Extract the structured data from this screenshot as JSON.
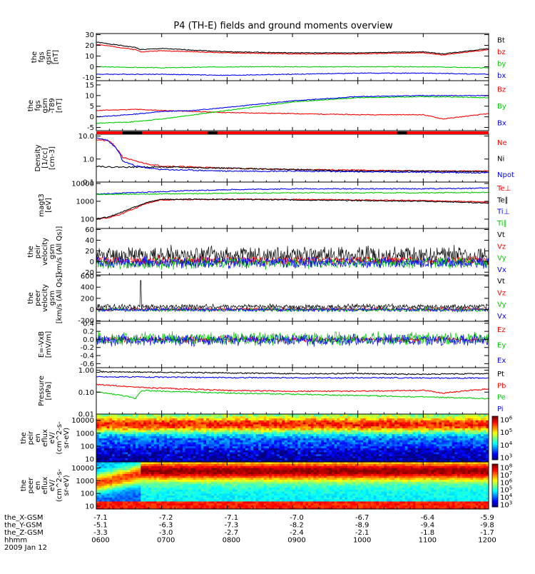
{
  "title": "P4 (TH-E) fields and ground moments overview",
  "chart_data": {
    "type": "line",
    "title": "P4 (TH-E) fields and ground moments overview",
    "time": {
      "range": [
        600,
        1200
      ],
      "ticks": [
        "0600",
        "0700",
        "0800",
        "0900",
        "1000",
        "1100",
        "1200"
      ],
      "date": "2009 Jan 12"
    },
    "panels": [
      {
        "id": "fgs_gsm",
        "ylabel": [
          "the",
          "fgs",
          "gsm",
          "[nT]"
        ],
        "ylim": [
          -13,
          31
        ],
        "scale": "linear",
        "yticks": [
          "30",
          "20",
          "10",
          "0",
          "-10"
        ],
        "series": [
          {
            "name": "Bt",
            "color": "#000000",
            "x": [
              600,
              660,
              668,
              700,
              800,
              900,
              1000,
              1100,
              1130,
              1200
            ],
            "y": [
              23,
              18,
              16,
              17,
              14,
              13,
              13,
              14,
              12,
              17
            ]
          },
          {
            "name": "bz",
            "color": "#ff0000",
            "x": [
              600,
              660,
              668,
              700,
              800,
              900,
              1000,
              1100,
              1130,
              1200
            ],
            "y": [
              21,
              16,
              14,
              15,
              13,
              12,
              12,
              13,
              11,
              16
            ]
          },
          {
            "name": "by",
            "color": "#00cc00",
            "x": [
              600,
              700,
              800,
              900,
              1000,
              1100,
              1200
            ],
            "y": [
              0,
              -1,
              0,
              0,
              0,
              0,
              -1
            ]
          },
          {
            "name": "bx",
            "color": "#0000ff",
            "x": [
              600,
              700,
              800,
              900,
              1000,
              1100,
              1200
            ],
            "y": [
              -7,
              -7,
              -8,
              -7,
              -6,
              -6,
              -7
            ]
          }
        ]
      },
      {
        "id": "fgs_gsm_t89",
        "ylabel": [
          "the",
          "fgs",
          "gsm",
          "-T89",
          "[nT]"
        ],
        "ylim": [
          -6.5,
          17
        ],
        "scale": "linear",
        "yticks": [
          "15",
          "10",
          "5",
          "0",
          "-5"
        ],
        "series": [
          {
            "name": "Bz",
            "color": "#ff0000",
            "x": [
              600,
              660,
              700,
              750,
              800,
              900,
              1000,
              1100,
              1130,
              1200
            ],
            "y": [
              3,
              3.5,
              3,
              2.5,
              2,
              1.5,
              1,
              1,
              -1,
              1.5
            ]
          },
          {
            "name": "By",
            "color": "#00cc00",
            "x": [
              600,
              650,
              700,
              750,
              800,
              850,
              900,
              950,
              1000,
              1100,
              1200
            ],
            "y": [
              -3,
              -2.5,
              -1,
              1,
              3,
              5,
              7,
              8,
              9,
              9.5,
              9
            ]
          },
          {
            "name": "Bx",
            "color": "#0000ff",
            "x": [
              600,
              650,
              700,
              750,
              800,
              850,
              900,
              950,
              1000,
              1100,
              1200
            ],
            "y": [
              0,
              1,
              2.5,
              3,
              4.5,
              6,
              7.5,
              8.5,
              9.5,
              10,
              10
            ]
          }
        ]
      },
      {
        "id": "density",
        "ylabel": [
          "Density",
          "[1/cc]",
          "[cm-3]"
        ],
        "ylim": [
          0.1,
          12
        ],
        "scale": "log",
        "yticks": [
          "10.0",
          "1.0",
          "0.1"
        ],
        "ytick_values": [
          10,
          1,
          0.1
        ],
        "series": [
          {
            "name": "Ne",
            "color": "#ff0000",
            "x": [
              600,
              620,
              630,
              640,
              660,
              680,
              700,
              800,
              900,
              1000,
              1100,
              1200
            ],
            "y": [
              7,
              6,
              3,
              1.2,
              0.8,
              0.6,
              0.5,
              0.4,
              0.35,
              0.33,
              0.3,
              0.3
            ]
          },
          {
            "name": "Ni",
            "color": "#000000",
            "x": [
              600,
              620,
              640,
              660,
              680,
              700,
              800,
              900,
              1000,
              1100,
              1200
            ],
            "y": [
              0.5,
              0.45,
              0.45,
              0.45,
              0.45,
              0.45,
              0.4,
              0.35,
              0.3,
              0.3,
              0.28
            ]
          },
          {
            "name": "Npot",
            "color": "#0000ff",
            "x": [
              600,
              615,
              625,
              640,
              660,
              680,
              700,
              800,
              900,
              1000,
              1100,
              1200
            ],
            "y": [
              8,
              7,
              4,
              0.8,
              0.5,
              0.4,
              0.35,
              0.3,
              0.3,
              0.28,
              0.27,
              0.25
            ]
          }
        ]
      },
      {
        "id": "magt3",
        "ylabel": [
          "magt3",
          "[eV]"
        ],
        "ylim": [
          30,
          12000
        ],
        "scale": "log",
        "yticks": [
          "10000",
          "1000",
          "100"
        ],
        "ytick_values": [
          10000,
          1000,
          100
        ],
        "series": [
          {
            "name": "Te⊥",
            "color": "#ff0000",
            "x": [
              600,
              620,
              640,
              660,
              680,
              700,
              800,
              900,
              1000,
              1100,
              1200
            ],
            "y": [
              100,
              120,
              200,
              400,
              800,
              1200,
              1300,
              1300,
              1200,
              1100,
              900
            ]
          },
          {
            "name": "Te∥",
            "color": "#000000",
            "x": [
              600,
              620,
              640,
              660,
              680,
              700,
              800,
              900,
              1000,
              1100,
              1200
            ],
            "y": [
              110,
              130,
              250,
              500,
              900,
              1300,
              1300,
              1200,
              1100,
              1000,
              800
            ]
          },
          {
            "name": "Ti⊥",
            "color": "#0000ff",
            "x": [
              600,
              650,
              700,
              750,
              800,
              900,
              1000,
              1100,
              1200
            ],
            "y": [
              2500,
              3000,
              3500,
              4000,
              4500,
              5000,
              5000,
              5000,
              5500
            ]
          },
          {
            "name": "Ti∥",
            "color": "#00cc00",
            "x": [
              600,
              650,
              700,
              800,
              900,
              1000,
              1100,
              1200
            ],
            "y": [
              2500,
              2500,
              2600,
              2800,
              3000,
              3000,
              3000,
              3200
            ]
          }
        ]
      },
      {
        "id": "peir_velocity",
        "ylabel": [
          "the",
          "peir",
          "velocity",
          "gsm",
          "[km/s (All Qs)]"
        ],
        "ylim": [
          -25,
          62
        ],
        "scale": "linear",
        "yticks": [
          "60",
          "40",
          "20",
          "0",
          "-20"
        ],
        "series": [
          {
            "name": "Vt",
            "color": "#000000",
            "base": 12,
            "noise": 14,
            "seed": 11
          },
          {
            "name": "Vz",
            "color": "#ff0000",
            "base": 2,
            "noise": 7,
            "seed": 12
          },
          {
            "name": "Vy",
            "color": "#00cc00",
            "base": -3,
            "noise": 9,
            "seed": 13
          },
          {
            "name": "Vx",
            "color": "#0000ff",
            "base": -2,
            "noise": 9,
            "seed": 14
          }
        ]
      },
      {
        "id": "peer_velocity",
        "ylabel": [
          "the",
          "peer",
          "velocity",
          "gsm",
          "[km/s (All Qs)]"
        ],
        "ylim": [
          -210,
          620
        ],
        "scale": "linear",
        "yticks": [
          "600",
          "400",
          "200",
          "0",
          "-200"
        ],
        "series": [
          {
            "name": "Vt",
            "color": "#000000",
            "base": 50,
            "noise": 40,
            "seed": 21
          },
          {
            "name": "Vz",
            "color": "#ff0000",
            "base": 5,
            "noise": 25,
            "seed": 22
          },
          {
            "name": "Vy",
            "color": "#00cc00",
            "base": -5,
            "noise": 30,
            "seed": 23
          },
          {
            "name": "Vx",
            "color": "#0000ff",
            "base": -5,
            "noise": 30,
            "seed": 24
          }
        ]
      },
      {
        "id": "efield",
        "ylabel": [
          "E=-VxB",
          "[mV/m]"
        ],
        "ylim": [
          -0.7,
          0.45
        ],
        "scale": "linear",
        "yticks": [
          "0.4",
          "0.2",
          "0.0",
          "-0.2",
          "-0.4",
          "-0.6"
        ],
        "series": [
          {
            "name": "Ez",
            "color": "#ff0000",
            "base": 0.0,
            "noise": 0.06,
            "seed": 31
          },
          {
            "name": "Ey",
            "color": "#00cc00",
            "base": 0.02,
            "noise": 0.14,
            "seed": 32
          },
          {
            "name": "Ex",
            "color": "#0000ff",
            "base": -0.02,
            "noise": 0.12,
            "seed": 33
          }
        ]
      },
      {
        "id": "pressure",
        "ylabel": [
          "Pressure",
          "[nPa]"
        ],
        "ylim": [
          0.01,
          1.3
        ],
        "scale": "log",
        "yticks": [
          "1.00",
          "0.10",
          "0.01"
        ],
        "ytick_values": [
          1,
          0.1,
          0.01
        ],
        "series": [
          {
            "name": "Pt",
            "color": "#000000",
            "x": [
              600,
              700,
              800,
              900,
              1000,
              1100,
              1200
            ],
            "y": [
              0.85,
              0.8,
              0.75,
              0.7,
              0.7,
              0.65,
              0.7
            ]
          },
          {
            "name": "Pb",
            "color": "#ff0000",
            "x": [
              600,
              660,
              700,
              800,
              900,
              1000,
              1100,
              1130,
              1200
            ],
            "y": [
              0.22,
              0.17,
              0.15,
              0.12,
              0.11,
              0.11,
              0.12,
              0.09,
              0.14
            ]
          },
          {
            "name": "Pe",
            "color": "#00cc00",
            "x": [
              600,
              640,
              660,
              670,
              700,
              800,
              900,
              1000,
              1100,
              1200
            ],
            "y": [
              0.1,
              0.07,
              0.05,
              0.12,
              0.11,
              0.09,
              0.08,
              0.07,
              0.06,
              0.05
            ]
          },
          {
            "name": "Pi",
            "color": "#0000ff",
            "x": [
              600,
              700,
              800,
              900,
              1000,
              1100,
              1200
            ],
            "y": [
              0.5,
              0.48,
              0.46,
              0.45,
              0.45,
              0.44,
              0.44
            ]
          }
        ]
      }
    ],
    "spectrograms": [
      {
        "id": "peir_en_eflux",
        "type": "heatmap",
        "ylabel": [
          "the",
          "peir",
          "en",
          "eflux",
          "eV/",
          "(cm^2-s-",
          "sr-eV)"
        ],
        "yticks": [
          "10000",
          "1000",
          "100",
          "10"
        ],
        "colorbar_labels": [
          "10^6",
          "10^5",
          "10^4",
          "10^3"
        ]
      },
      {
        "id": "peer_en_eflux",
        "type": "heatmap",
        "ylabel": [
          "the",
          "peer",
          "en",
          "eflux",
          "eV/",
          "(cm^2-s-",
          "sr-eV)"
        ],
        "yticks": [
          "10000",
          "1000",
          "100",
          "10"
        ],
        "colorbar_labels": [
          "10^8",
          "10^7",
          "10^6",
          "10^5",
          "10^4",
          "10^3"
        ]
      }
    ],
    "ephemeris": {
      "rows": [
        {
          "label": "the_X-GSM",
          "values": [
            "-7.1",
            "-7.2",
            "-7.1",
            "-7.0",
            "-6.7",
            "-6.4",
            "-5.9"
          ]
        },
        {
          "label": "the_Y-GSM",
          "values": [
            "-5.1",
            "-6.3",
            "-7.3",
            "-8.2",
            "-8.9",
            "-9.4",
            "-9.8"
          ]
        },
        {
          "label": "the_Z-GSM",
          "values": [
            "-3.3",
            "-3.0",
            "-2.7",
            "-2.4",
            "-2.1",
            "-1.8",
            "-1.7"
          ]
        },
        {
          "label": "hhmm",
          "values": [
            "0600",
            "0700",
            "0800",
            "0900",
            "1000",
            "1100",
            "1200"
          ]
        }
      ],
      "date": "2009 Jan 12"
    },
    "flag_bar": {
      "color": "#ff0000",
      "segments_black": [
        [
          640,
          670
        ],
        [
          770,
          785
        ],
        [
          1060,
          1075
        ]
      ]
    }
  }
}
